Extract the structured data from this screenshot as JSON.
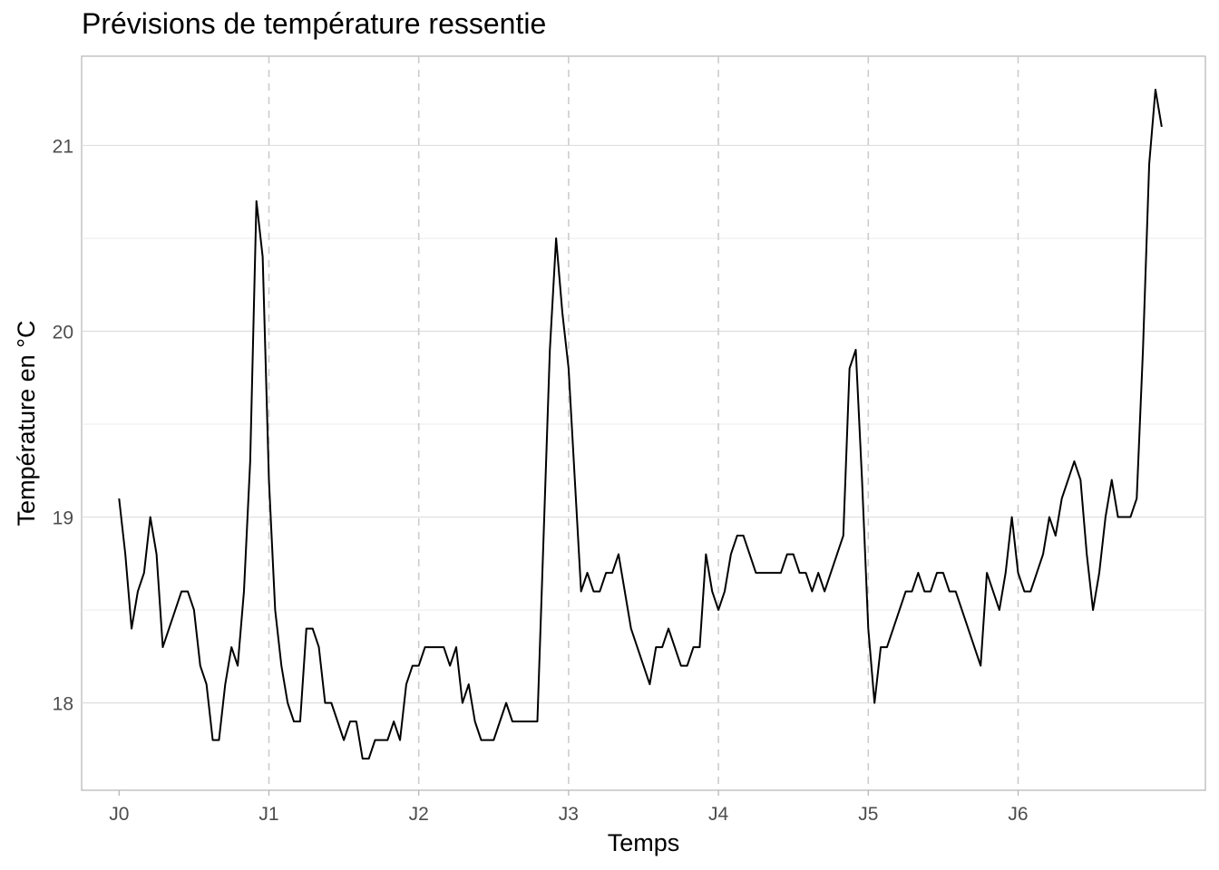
{
  "chart_data": {
    "type": "line",
    "title": "Prévisions de température ressentie",
    "xlabel": "Temps",
    "ylabel": "Température en °C",
    "x_unit": "hours",
    "x_step_hours": 1,
    "x_ticks": [
      {
        "label": "J0",
        "value": 0
      },
      {
        "label": "J1",
        "value": 24
      },
      {
        "label": "J2",
        "value": 48
      },
      {
        "label": "J3",
        "value": 72
      },
      {
        "label": "J4",
        "value": 96
      },
      {
        "label": "J5",
        "value": 120
      },
      {
        "label": "J6",
        "value": 144
      }
    ],
    "xlim": [
      -6,
      174
    ],
    "y_ticks": [
      18,
      19,
      20,
      21
    ],
    "ylim": [
      17.53,
      21.48
    ],
    "grid": true,
    "vertical_dashed_lines_at_ticks": true,
    "line_color": "#000000",
    "series": [
      {
        "values": [
          19.1,
          18.8,
          18.4,
          18.6,
          18.7,
          19.0,
          18.8,
          18.3,
          18.4,
          18.5,
          18.6,
          18.6,
          18.5,
          18.2,
          18.1,
          17.8,
          17.8,
          18.1,
          18.3,
          18.2,
          18.6,
          19.3,
          20.7,
          20.4,
          19.2,
          18.5,
          18.2,
          18.0,
          17.9,
          17.9,
          18.4,
          18.4,
          18.3,
          18.0,
          18.0,
          17.9,
          17.8,
          17.9,
          17.9,
          17.7,
          17.7,
          17.8,
          17.8,
          17.8,
          17.9,
          17.8,
          18.1,
          18.2,
          18.2,
          18.3,
          18.3,
          18.3,
          18.3,
          18.2,
          18.3,
          18.0,
          18.1,
          17.9,
          17.8,
          17.8,
          17.8,
          17.9,
          18.0,
          17.9,
          17.9,
          17.9,
          17.9,
          17.9,
          18.9,
          19.9,
          20.5,
          20.1,
          19.8,
          19.2,
          18.6,
          18.7,
          18.6,
          18.6,
          18.7,
          18.7,
          18.8,
          18.6,
          18.4,
          18.3,
          18.2,
          18.1,
          18.3,
          18.3,
          18.4,
          18.3,
          18.2,
          18.2,
          18.3,
          18.3,
          18.8,
          18.6,
          18.5,
          18.6,
          18.8,
          18.9,
          18.9,
          18.8,
          18.7,
          18.7,
          18.7,
          18.7,
          18.7,
          18.8,
          18.8,
          18.7,
          18.7,
          18.6,
          18.7,
          18.6,
          18.7,
          18.8,
          18.9,
          19.8,
          19.9,
          19.2,
          18.4,
          18.0,
          18.3,
          18.3,
          18.4,
          18.5,
          18.6,
          18.6,
          18.7,
          18.6,
          18.6,
          18.7,
          18.7,
          18.6,
          18.6,
          18.5,
          18.4,
          18.3,
          18.2,
          18.7,
          18.6,
          18.5,
          18.7,
          19.0,
          18.7,
          18.6,
          18.6,
          18.7,
          18.8,
          19.0,
          18.9,
          19.1,
          19.2,
          19.3,
          19.2,
          18.8,
          18.5,
          18.7,
          19.0,
          19.2,
          19.0,
          19.0,
          19.0,
          19.1,
          19.9,
          20.9,
          21.3,
          21.1
        ]
      }
    ]
  }
}
